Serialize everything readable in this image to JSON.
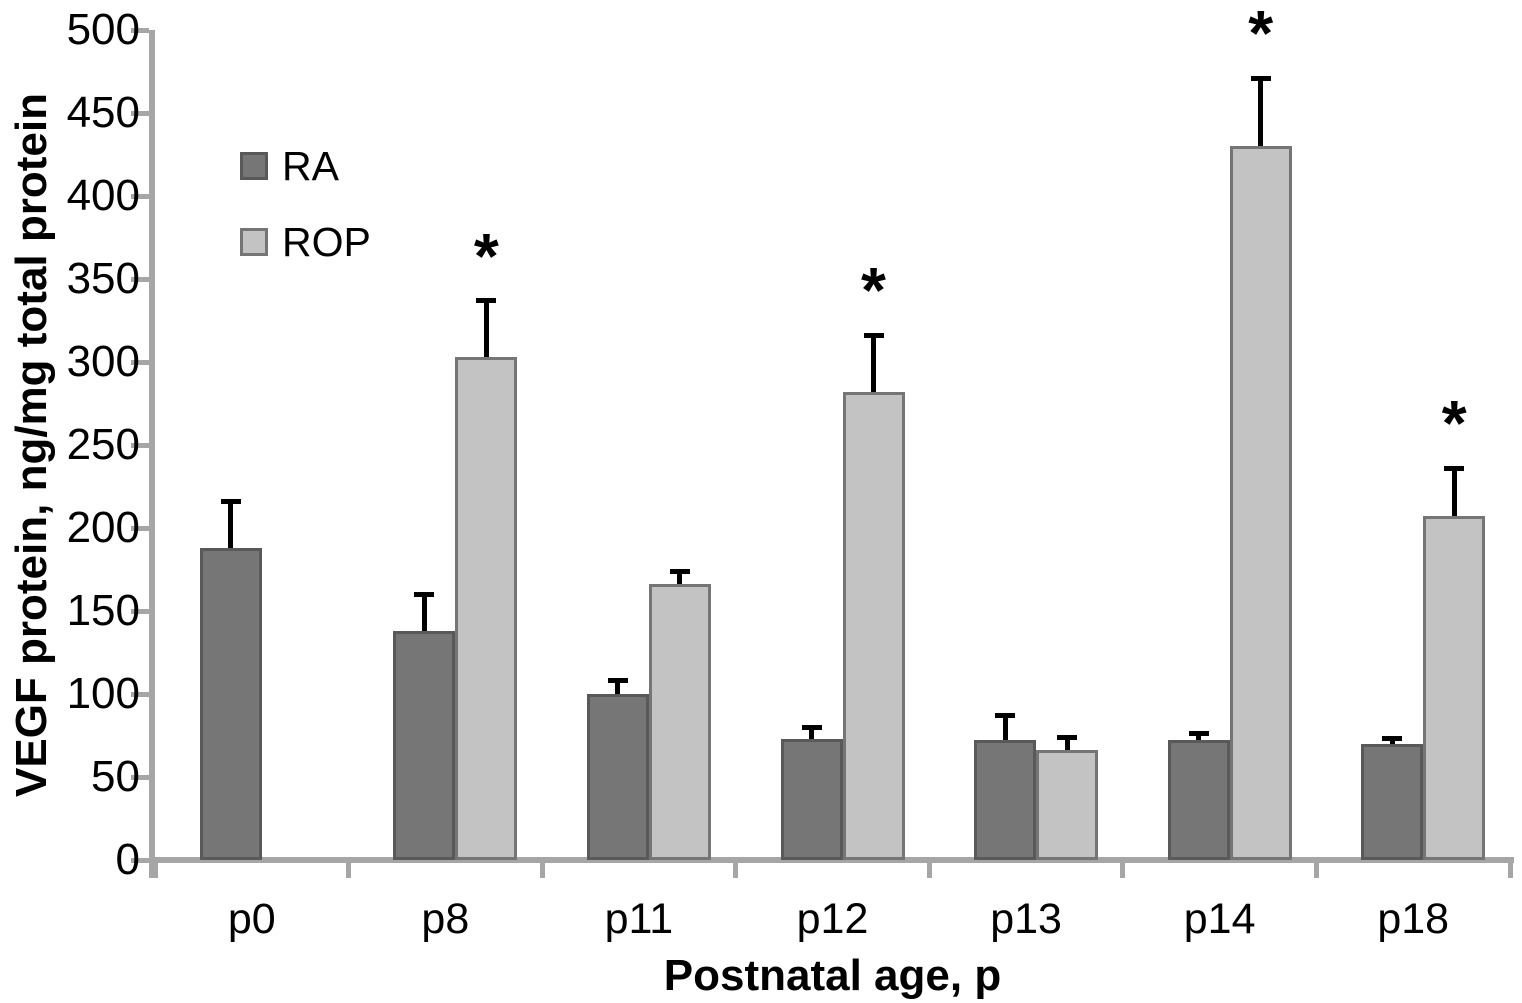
{
  "chart_data": {
    "type": "bar",
    "title": "",
    "xlabel": "Postnatal age, p",
    "ylabel": "VEGF protein, ng/mg total protein",
    "categories": [
      "p0",
      "p8",
      "p11",
      "p12",
      "p13",
      "p14",
      "p18"
    ],
    "series": [
      {
        "name": "RA",
        "values": [
          188,
          138,
          100,
          73,
          72,
          72,
          70
        ],
        "errors_up": [
          28,
          22,
          8,
          7,
          15,
          4,
          3
        ],
        "significance": [
          false,
          false,
          false,
          false,
          false,
          false,
          false
        ],
        "fill": "#767676",
        "border": "#595959"
      },
      {
        "name": "ROP",
        "values": [
          null,
          303,
          166,
          282,
          66,
          430,
          207
        ],
        "errors_up": [
          null,
          34,
          8,
          34,
          8,
          41,
          29
        ],
        "significance": [
          false,
          true,
          false,
          true,
          false,
          true,
          true
        ],
        "fill": "#c3c3c3",
        "border": "#757575"
      }
    ],
    "significance_marker": "*",
    "ylim": [
      0,
      500
    ],
    "ytick_step": 50,
    "yticks": [
      0,
      50,
      100,
      150,
      200,
      250,
      300,
      350,
      400,
      450,
      500
    ],
    "grid": false,
    "legend_position": "upper-left-inside",
    "colors": {
      "axis": "#a6a6a6",
      "error_bar": "#000000",
      "text": "#000000"
    }
  }
}
